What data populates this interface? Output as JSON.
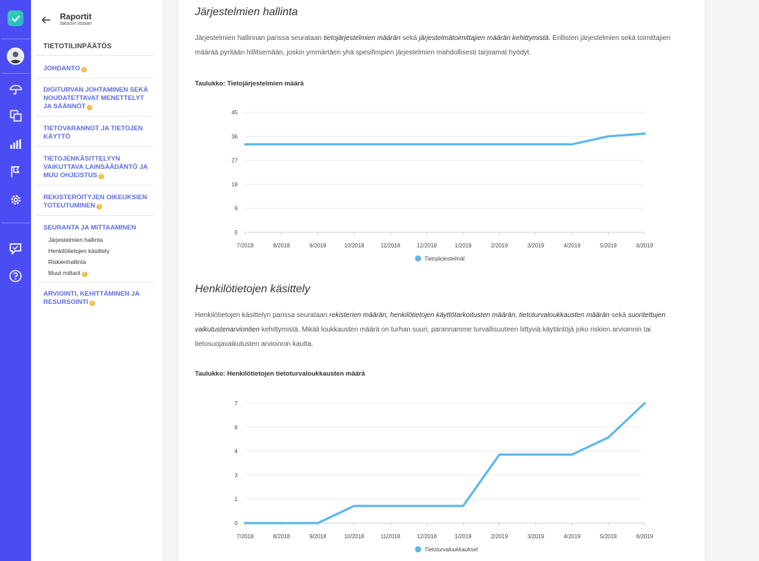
{
  "rail": {
    "icons": [
      "logo-check-icon",
      "avatar",
      "umbrella-icon",
      "documents-icon",
      "bar-chart-icon",
      "flag-icon",
      "gear-icon",
      "feedback-icon",
      "help-icon"
    ]
  },
  "sidebar": {
    "title": "Raportit",
    "subtitle": "takaisin listaan",
    "heading": "TIETOTILINPÄÄTÖS",
    "sections": [
      {
        "label": "JOHDANTO",
        "info": true
      },
      {
        "label": "DIGITURVAN JOHTAMINEN SEKÄ NOUDATETTAVAT MENETTELYT JA SÄÄNNÖT",
        "info": true
      },
      {
        "label": "TIETOVARANNOT JA TIETOJEN KÄYTTÖ",
        "info": false
      },
      {
        "label": "TIETOJENKÄSITTELYYN VAIKUTTAVA LAINSÄÄDÄNTÖ JA MUU OHJEISTUS",
        "info": true
      },
      {
        "label": "REKISTERÖITYJEN OIKEUKSIEN TOTEUTUMINEN",
        "info": true
      },
      {
        "label": "SEURANTA JA MITTAAMINEN",
        "info": false
      },
      {
        "label": "ARVIOINTI, KEHITTÄMINEN JA RESURSOINTI",
        "info": true
      }
    ],
    "subitems": [
      {
        "label": "Järjestelmien hallinta",
        "info": false
      },
      {
        "label": "Henkilötietojen käsittely",
        "info": false
      },
      {
        "label": "Riskienhallinta",
        "info": false
      },
      {
        "label": "Muut mittarit",
        "info": true
      }
    ]
  },
  "content": {
    "section1": {
      "heading": "Järjestelmien hallinta",
      "p_a": "Järjestelmien hallinnan parissa seurataan ",
      "p_em1": "tietojärjestelmien määrän",
      "p_b": " sekä ",
      "p_em2": "järjestelmätoimittajien määrän kehittymistä.",
      "p_c": " Erillisten järjestelmien sekä toimittajien määrää pyritään hillitsemään, joskin ymmärtäen yhä spesifimpien järjestelmien mahdollisesti tarjoamat hyödyt.",
      "table_caption": "Taulukko: Tietojärjestelmien määrä"
    },
    "section2": {
      "heading": "Henkilötietojen käsittely",
      "p_a": "Henkilötietojen käsittelyn parissa seurataan ",
      "p_em1": "rekisterien määrän, henkilötietojen käyttötarkoitusten määrän, tietoturvaloukkausten määrän",
      "p_b": " sekä ",
      "p_em2": "suoritettujen vaikutustenarviontien",
      "p_c": " kehittymistä. Mikäli loukkausten määrä on turhan suuri, parannamme turvallisuuteen liittyviä käytäntöjä joko riskien arvioinnin tai tietosuojavaikutusten arvioinnin kautta.",
      "table_caption": "Taulukko: Henkilötietojen tietoturvaloukkausten määrä"
    }
  },
  "chart_data": [
    {
      "type": "line",
      "title": "Taulukko: Tietojärjestelmien määrä",
      "categories": [
        "7/2018",
        "8/2018",
        "9/2018",
        "10/2018",
        "11/2018",
        "12/2018",
        "1/2019",
        "2/2019",
        "3/2019",
        "4/2019",
        "5/2019",
        "6/2019"
      ],
      "series": [
        {
          "name": "Tietojärjestelmät",
          "values": [
            33,
            33,
            33,
            33,
            33,
            33,
            33,
            33,
            33,
            33,
            36,
            37
          ],
          "color": "#5bb8e8"
        }
      ],
      "y_ticks": [
        "45",
        "36",
        "27",
        "18",
        "9",
        "0"
      ],
      "ylim": [
        0,
        45
      ],
      "grid": true,
      "legend": "bottom-center"
    },
    {
      "type": "line",
      "title": "Taulukko: Henkilötietojen tietoturvaloukkausten määrä",
      "categories": [
        "7/2018",
        "8/2018",
        "9/2018",
        "10/2018",
        "11/2018",
        "12/2018",
        "1/2019",
        "2/2019",
        "3/2019",
        "4/2019",
        "5/2019",
        "6/2019"
      ],
      "series": [
        {
          "name": "Tietoturvaloukkaukset",
          "values": [
            0,
            0,
            0,
            1,
            1,
            1,
            1,
            4,
            4,
            4,
            5,
            7
          ],
          "color": "#5bb8e8"
        }
      ],
      "y_ticks": [
        "7",
        "6",
        "4",
        "3",
        "1",
        "0"
      ],
      "ylim": [
        0,
        7
      ],
      "grid": true,
      "legend": "bottom-center"
    }
  ]
}
